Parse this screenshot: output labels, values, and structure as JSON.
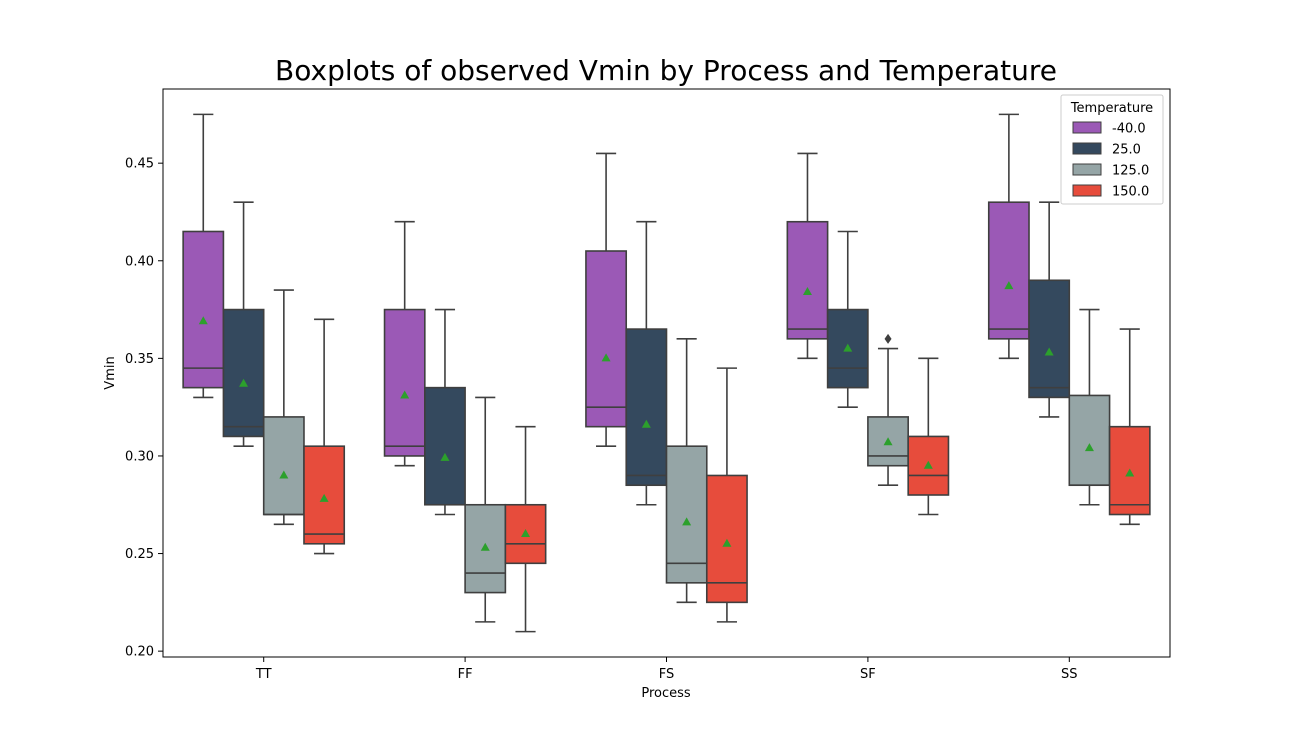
{
  "chart_data": {
    "type": "box",
    "title": "Boxplots of observed Vmin by Process and Temperature",
    "xlabel": "Process",
    "ylabel": "Vmin",
    "ylim": [
      0.197,
      0.488
    ],
    "yticks": [
      "0.20",
      "0.25",
      "0.30",
      "0.35",
      "0.40",
      "0.45"
    ],
    "categories": [
      "TT",
      "FF",
      "FS",
      "SF",
      "SS"
    ],
    "legend": {
      "title": "Temperature",
      "placement": "top-right"
    },
    "mean_marker_color": "#2ca02c",
    "series": [
      {
        "name": "-40.0",
        "color": "#9b59b6",
        "boxes": [
          {
            "whislo": 0.33,
            "q1": 0.335,
            "med": 0.345,
            "q3": 0.415,
            "whishi": 0.475,
            "mean": 0.369,
            "fliers": []
          },
          {
            "whislo": 0.295,
            "q1": 0.3,
            "med": 0.305,
            "q3": 0.375,
            "whishi": 0.42,
            "mean": 0.331,
            "fliers": []
          },
          {
            "whislo": 0.305,
            "q1": 0.315,
            "med": 0.325,
            "q3": 0.405,
            "whishi": 0.455,
            "mean": 0.35,
            "fliers": []
          },
          {
            "whislo": 0.35,
            "q1": 0.36,
            "med": 0.365,
            "q3": 0.42,
            "whishi": 0.455,
            "mean": 0.384,
            "fliers": []
          },
          {
            "whislo": 0.35,
            "q1": 0.36,
            "med": 0.365,
            "q3": 0.43,
            "whishi": 0.475,
            "mean": 0.387,
            "fliers": []
          }
        ]
      },
      {
        "name": "25.0",
        "color": "#34495e",
        "boxes": [
          {
            "whislo": 0.305,
            "q1": 0.31,
            "med": 0.315,
            "q3": 0.375,
            "whishi": 0.43,
            "mean": 0.337,
            "fliers": []
          },
          {
            "whislo": 0.27,
            "q1": 0.275,
            "med": 0.275,
            "q3": 0.335,
            "whishi": 0.375,
            "mean": 0.299,
            "fliers": []
          },
          {
            "whislo": 0.275,
            "q1": 0.285,
            "med": 0.29,
            "q3": 0.365,
            "whishi": 0.42,
            "mean": 0.316,
            "fliers": []
          },
          {
            "whislo": 0.325,
            "q1": 0.335,
            "med": 0.345,
            "q3": 0.375,
            "whishi": 0.415,
            "mean": 0.355,
            "fliers": []
          },
          {
            "whislo": 0.32,
            "q1": 0.33,
            "med": 0.335,
            "q3": 0.39,
            "whishi": 0.43,
            "mean": 0.353,
            "fliers": []
          }
        ]
      },
      {
        "name": "125.0",
        "color": "#95a5a6",
        "boxes": [
          {
            "whislo": 0.265,
            "q1": 0.27,
            "med": 0.27,
            "q3": 0.32,
            "whishi": 0.385,
            "mean": 0.29,
            "fliers": []
          },
          {
            "whislo": 0.215,
            "q1": 0.23,
            "med": 0.24,
            "q3": 0.275,
            "whishi": 0.33,
            "mean": 0.253,
            "fliers": []
          },
          {
            "whislo": 0.225,
            "q1": 0.235,
            "med": 0.245,
            "q3": 0.305,
            "whishi": 0.36,
            "mean": 0.266,
            "fliers": []
          },
          {
            "whislo": 0.285,
            "q1": 0.295,
            "med": 0.3,
            "q3": 0.32,
            "whishi": 0.355,
            "mean": 0.307,
            "fliers": [
              0.36
            ]
          },
          {
            "whislo": 0.275,
            "q1": 0.285,
            "med": 0.285,
            "q3": 0.331,
            "whishi": 0.375,
            "mean": 0.304,
            "fliers": []
          }
        ]
      },
      {
        "name": "150.0",
        "color": "#e74c3c",
        "boxes": [
          {
            "whislo": 0.25,
            "q1": 0.255,
            "med": 0.26,
            "q3": 0.305,
            "whishi": 0.37,
            "mean": 0.278,
            "fliers": []
          },
          {
            "whislo": 0.21,
            "q1": 0.245,
            "med": 0.255,
            "q3": 0.275,
            "whishi": 0.315,
            "mean": 0.26,
            "fliers": []
          },
          {
            "whislo": 0.215,
            "q1": 0.225,
            "med": 0.235,
            "q3": 0.29,
            "whishi": 0.345,
            "mean": 0.255,
            "fliers": []
          },
          {
            "whislo": 0.27,
            "q1": 0.28,
            "med": 0.29,
            "q3": 0.31,
            "whishi": 0.35,
            "mean": 0.295,
            "fliers": []
          },
          {
            "whislo": 0.265,
            "q1": 0.27,
            "med": 0.275,
            "q3": 0.315,
            "whishi": 0.365,
            "mean": 0.291,
            "fliers": []
          }
        ]
      }
    ]
  }
}
